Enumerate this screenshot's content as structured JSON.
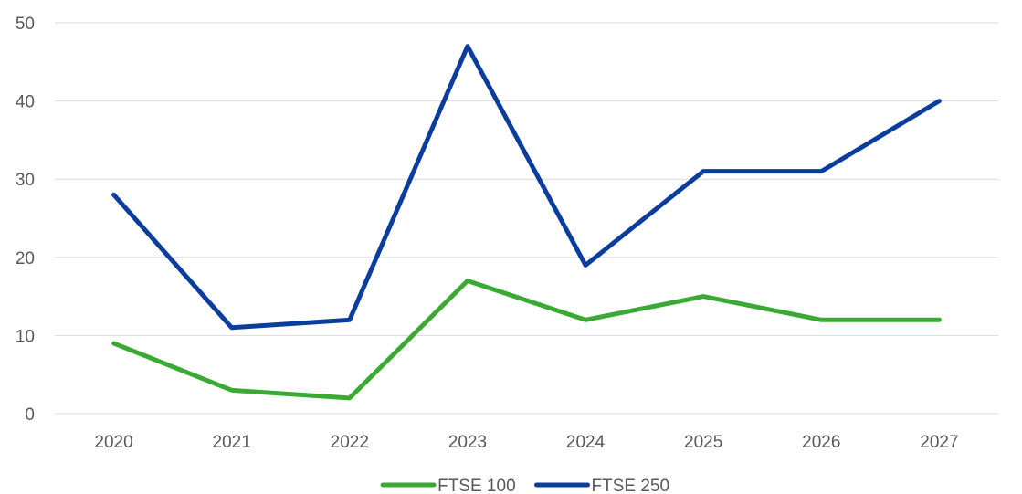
{
  "chart_data": {
    "type": "line",
    "title": "",
    "xlabel": "",
    "ylabel": "",
    "categories": [
      "2020",
      "2021",
      "2022",
      "2023",
      "2024",
      "2025",
      "2026",
      "2027"
    ],
    "series": [
      {
        "name": "FTSE 100",
        "color": "#3aaa35",
        "values": [
          9,
          3,
          2,
          17,
          12,
          15,
          12,
          12
        ]
      },
      {
        "name": "FTSE 250",
        "color": "#0a3d9c",
        "values": [
          28,
          11,
          12,
          47,
          19,
          31,
          31,
          40
        ]
      }
    ],
    "ylim": [
      0,
      50
    ],
    "yticks": [
      "0",
      "10",
      "20",
      "30",
      "40",
      "50"
    ],
    "grid": true,
    "legend": "bottom-center"
  }
}
